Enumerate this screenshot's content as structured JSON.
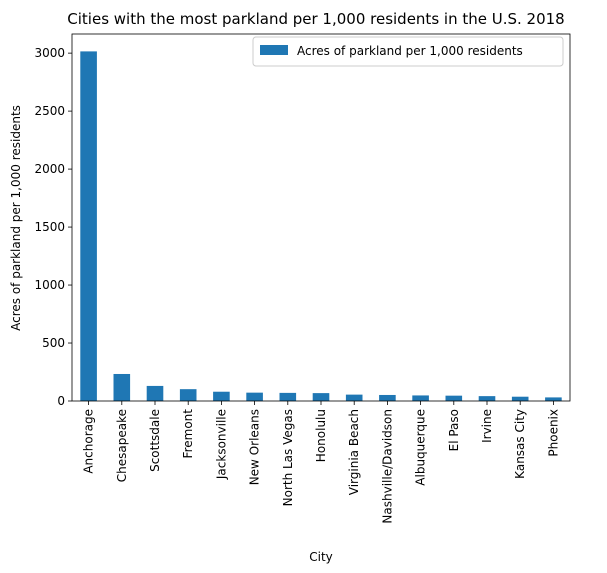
{
  "chart_data": {
    "type": "bar",
    "title": "Cities with the most parkland per 1,000 residents in the U.S. 2018",
    "xlabel": "City",
    "ylabel": "Acres of parkland per 1,000 residents",
    "categories": [
      "Anchorage",
      "Chesapeake",
      "Scottsdale",
      "Fremont",
      "Jacksonville",
      "New Orleans",
      "North Las Vegas",
      "Honolulu",
      "Virginia Beach",
      "Nashville/Davidson",
      "Albuquerque",
      "El Paso",
      "Irvine",
      "Kansas City",
      "Phoenix"
    ],
    "series": [
      {
        "name": "Acres of parkland per 1,000 residents",
        "values": [
          3015,
          233,
          130,
          102,
          80,
          72,
          70,
          68,
          55,
          52,
          48,
          46,
          42,
          37,
          31
        ],
        "color": "#1f77b4"
      }
    ],
    "yticks": [
      0,
      500,
      1000,
      1500,
      2000,
      2500,
      3000
    ],
    "ylim": [
      0,
      3165
    ],
    "grid": false,
    "legend_position": "top-right"
  }
}
